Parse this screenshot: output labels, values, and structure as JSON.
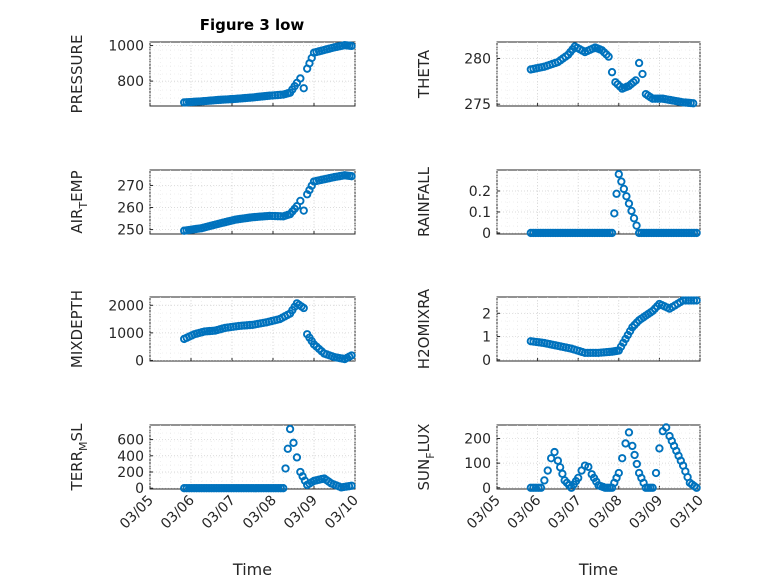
{
  "figure": {
    "title": "Figure 3 low",
    "marker_color": "#0072BD"
  },
  "chart_data": [
    {
      "type": "scatter",
      "title": "Figure 3 low",
      "ylabel": "PRESSURE",
      "ylabel_sub": "",
      "xlabel": "",
      "xlim": [
        "03/05",
        "03/10"
      ],
      "xticks": [
        "03/05",
        "03/06",
        "03/07",
        "03/08",
        "03/09",
        "03/10"
      ],
      "ylim": [
        660,
        1020
      ],
      "yticks": [
        800,
        1000
      ],
      "grid": true,
      "x": [
        "2021-03-05T20:00",
        "2021-03-06T06:00",
        "2021-03-06T16:00",
        "2021-03-07T02:00",
        "2021-03-07T12:00",
        "2021-03-07T22:00",
        "2021-03-08T06:00",
        "2021-03-08T10:00",
        "2021-03-08T14:00",
        "2021-03-08T16:00",
        "2021-03-08T18:00",
        "2021-03-08T20:00",
        "2021-03-09T00:00",
        "2021-03-09T06:00",
        "2021-03-09T12:00",
        "2021-03-09T18:00",
        "2021-03-09T22:00"
      ],
      "y": [
        680,
        686,
        694,
        700,
        708,
        718,
        724,
        735,
        790,
        815,
        760,
        870,
        960,
        975,
        990,
        1002,
        998
      ]
    },
    {
      "type": "scatter",
      "title": "",
      "ylabel": "THETA",
      "ylabel_sub": "",
      "xlabel": "",
      "xlim": [
        "03/05",
        "03/10"
      ],
      "xticks": [
        "03/05",
        "03/06",
        "03/07",
        "03/08",
        "03/09",
        "03/10"
      ],
      "ylim": [
        274.8,
        281.8
      ],
      "yticks": [
        275,
        280
      ],
      "grid": true,
      "x": [
        "2021-03-05T20:00",
        "2021-03-06T04:00",
        "2021-03-06T12:00",
        "2021-03-06T18:00",
        "2021-03-06T22:00",
        "2021-03-07T04:00",
        "2021-03-07T10:00",
        "2021-03-07T14:00",
        "2021-03-07T18:00",
        "2021-03-07T20:00",
        "2021-03-07T22:00",
        "2021-03-08T02:00",
        "2021-03-08T06:00",
        "2021-03-08T10:00",
        "2021-03-08T12:00",
        "2021-03-08T14:00",
        "2021-03-08T16:00",
        "2021-03-08T20:00",
        "2021-03-09T02:00",
        "2021-03-09T08:00",
        "2021-03-09T14:00",
        "2021-03-09T20:00"
      ],
      "y": [
        278.8,
        279.1,
        279.6,
        280.4,
        281.3,
        280.7,
        281.2,
        280.9,
        280.2,
        278.5,
        277.4,
        276.7,
        277.0,
        277.6,
        279.5,
        278.3,
        276.1,
        275.6,
        275.6,
        275.4,
        275.2,
        275.1
      ]
    },
    {
      "type": "scatter",
      "title": "",
      "ylabel": "AIR",
      "ylabel_sub": "T",
      "ylabel_suffix": "EMP",
      "xlabel": "",
      "xlim": [
        "03/05",
        "03/10"
      ],
      "xticks": [
        "03/05",
        "03/06",
        "03/07",
        "03/08",
        "03/09",
        "03/10"
      ],
      "ylim": [
        248,
        277
      ],
      "yticks": [
        250,
        260,
        270
      ],
      "grid": true,
      "x": [
        "2021-03-05T20:00",
        "2021-03-06T06:00",
        "2021-03-06T16:00",
        "2021-03-07T02:00",
        "2021-03-07T12:00",
        "2021-03-07T22:00",
        "2021-03-08T06:00",
        "2021-03-08T10:00",
        "2021-03-08T14:00",
        "2021-03-08T16:00",
        "2021-03-08T18:00",
        "2021-03-08T20:00",
        "2021-03-09T00:00",
        "2021-03-09T06:00",
        "2021-03-09T12:00",
        "2021-03-09T18:00",
        "2021-03-09T22:00"
      ],
      "y": [
        249.5,
        250.6,
        252.6,
        254.5,
        255.6,
        256.2,
        256.0,
        257.0,
        260.6,
        263.0,
        258.6,
        266.0,
        271.8,
        272.8,
        273.8,
        274.6,
        274.2
      ]
    },
    {
      "type": "scatter",
      "title": "",
      "ylabel": "RAINFALL",
      "ylabel_sub": "",
      "xlabel": "",
      "xlim": [
        "03/05",
        "03/10"
      ],
      "xticks": [
        "03/05",
        "03/06",
        "03/07",
        "03/08",
        "03/09",
        "03/10"
      ],
      "ylim": [
        -0.005,
        0.3
      ],
      "yticks": [
        0,
        0.1,
        0.2
      ],
      "grid": true,
      "x": [
        "2021-03-05T20:00",
        "2021-03-06T12:00",
        "2021-03-07T04:00",
        "2021-03-07T20:00",
        "2021-03-08T00:00",
        "2021-03-08T12:00",
        "2021-03-09T04:00",
        "2021-03-09T22:00"
      ],
      "y": [
        0,
        0,
        0,
        0,
        0.28,
        0,
        0,
        0
      ]
    },
    {
      "type": "scatter",
      "title": "",
      "ylabel": "MIXDEPTH",
      "ylabel_sub": "",
      "xlabel": "",
      "xlim": [
        "03/05",
        "03/10"
      ],
      "xticks": [
        "03/05",
        "03/06",
        "03/07",
        "03/08",
        "03/09",
        "03/10"
      ],
      "ylim": [
        -20,
        2300
      ],
      "yticks": [
        0,
        1000,
        2000
      ],
      "grid": true,
      "x": [
        "2021-03-05T20:00",
        "2021-03-06T02:00",
        "2021-03-06T08:00",
        "2021-03-06T14:00",
        "2021-03-06T20:00",
        "2021-03-07T04:00",
        "2021-03-07T12:00",
        "2021-03-07T20:00",
        "2021-03-08T04:00",
        "2021-03-08T10:00",
        "2021-03-08T14:00",
        "2021-03-08T18:00",
        "2021-03-08T20:00",
        "2021-03-09T00:00",
        "2021-03-09T06:00",
        "2021-03-09T12:00",
        "2021-03-09T18:00",
        "2021-03-09T22:00"
      ],
      "y": [
        780,
        950,
        1050,
        1080,
        1180,
        1250,
        1290,
        1380,
        1500,
        1700,
        2070,
        1900,
        950,
        580,
        250,
        120,
        50,
        180
      ]
    },
    {
      "type": "scatter",
      "title": "",
      "ylabel": "H2OMIXRA",
      "ylabel_sub": "",
      "xlabel": "",
      "xlim": [
        "03/05",
        "03/10"
      ],
      "xticks": [
        "03/05",
        "03/06",
        "03/07",
        "03/08",
        "03/09",
        "03/10"
      ],
      "ylim": [
        -0.05,
        2.7
      ],
      "yticks": [
        0,
        1,
        2
      ],
      "grid": true,
      "x": [
        "2021-03-05T20:00",
        "2021-03-06T04:00",
        "2021-03-06T12:00",
        "2021-03-06T20:00",
        "2021-03-07T04:00",
        "2021-03-07T12:00",
        "2021-03-07T20:00",
        "2021-03-08T00:00",
        "2021-03-08T04:00",
        "2021-03-08T08:00",
        "2021-03-08T12:00",
        "2021-03-08T16:00",
        "2021-03-08T20:00",
        "2021-03-09T00:00",
        "2021-03-09T06:00",
        "2021-03-09T14:00",
        "2021-03-09T22:00"
      ],
      "y": [
        0.8,
        0.72,
        0.6,
        0.48,
        0.3,
        0.3,
        0.35,
        0.4,
        0.9,
        1.4,
        1.7,
        1.9,
        2.1,
        2.4,
        2.2,
        2.55,
        2.55
      ]
    },
    {
      "type": "scatter",
      "title": "",
      "ylabel": "TERR",
      "ylabel_sub": "M",
      "ylabel_suffix": "SL",
      "xlabel": "Time",
      "xlim": [
        "03/05",
        "03/10"
      ],
      "xticks": [
        "03/05",
        "03/06",
        "03/07",
        "03/08",
        "03/09",
        "03/10"
      ],
      "ylim": [
        -10,
        780
      ],
      "yticks": [
        0,
        200,
        400,
        600
      ],
      "grid": true,
      "x": [
        "2021-03-05T20:00",
        "2021-03-06T12:00",
        "2021-03-07T04:00",
        "2021-03-07T20:00",
        "2021-03-08T06:00",
        "2021-03-08T10:00",
        "2021-03-08T12:00",
        "2021-03-08T14:00",
        "2021-03-08T16:00",
        "2021-03-08T20:00",
        "2021-03-09T00:00",
        "2021-03-09T06:00",
        "2021-03-09T10:00",
        "2021-03-09T16:00",
        "2021-03-09T22:00"
      ],
      "y": [
        0,
        0,
        0,
        0,
        0,
        730,
        560,
        380,
        200,
        40,
        90,
        120,
        60,
        10,
        30
      ]
    },
    {
      "type": "scatter",
      "title": "",
      "ylabel": "SUN",
      "ylabel_sub": "F",
      "ylabel_suffix": "LUX",
      "xlabel": "Time",
      "xlim": [
        "03/05",
        "03/10"
      ],
      "xticks": [
        "03/05",
        "03/06",
        "03/07",
        "03/08",
        "03/09",
        "03/10"
      ],
      "ylim": [
        -5,
        255
      ],
      "yticks": [
        0,
        100,
        200
      ],
      "grid": true,
      "x": [
        "2021-03-05T20:00",
        "2021-03-06T02:00",
        "2021-03-06T04:00",
        "2021-03-06T06:00",
        "2021-03-06T08:00",
        "2021-03-06T10:00",
        "2021-03-06T12:00",
        "2021-03-06T16:00",
        "2021-03-06T20:00",
        "2021-03-07T00:00",
        "2021-03-07T02:00",
        "2021-03-07T04:00",
        "2021-03-07T06:00",
        "2021-03-07T08:00",
        "2021-03-07T12:00",
        "2021-03-07T16:00",
        "2021-03-07T20:00",
        "2021-03-08T00:00",
        "2021-03-08T02:00",
        "2021-03-08T04:00",
        "2021-03-08T06:00",
        "2021-03-08T08:00",
        "2021-03-08T12:00",
        "2021-03-08T16:00",
        "2021-03-08T20:00",
        "2021-03-08T22:00",
        "2021-03-09T00:00",
        "2021-03-09T02:00",
        "2021-03-09T04:00",
        "2021-03-09T06:00",
        "2021-03-09T10:00",
        "2021-03-09T14:00",
        "2021-03-09T18:00",
        "2021-03-09T22:00"
      ],
      "y": [
        0,
        0,
        30,
        70,
        120,
        145,
        110,
        30,
        0,
        40,
        70,
        90,
        85,
        55,
        10,
        0,
        0,
        60,
        120,
        180,
        225,
        170,
        60,
        0,
        0,
        60,
        160,
        230,
        245,
        210,
        150,
        90,
        20,
        0
      ]
    }
  ]
}
